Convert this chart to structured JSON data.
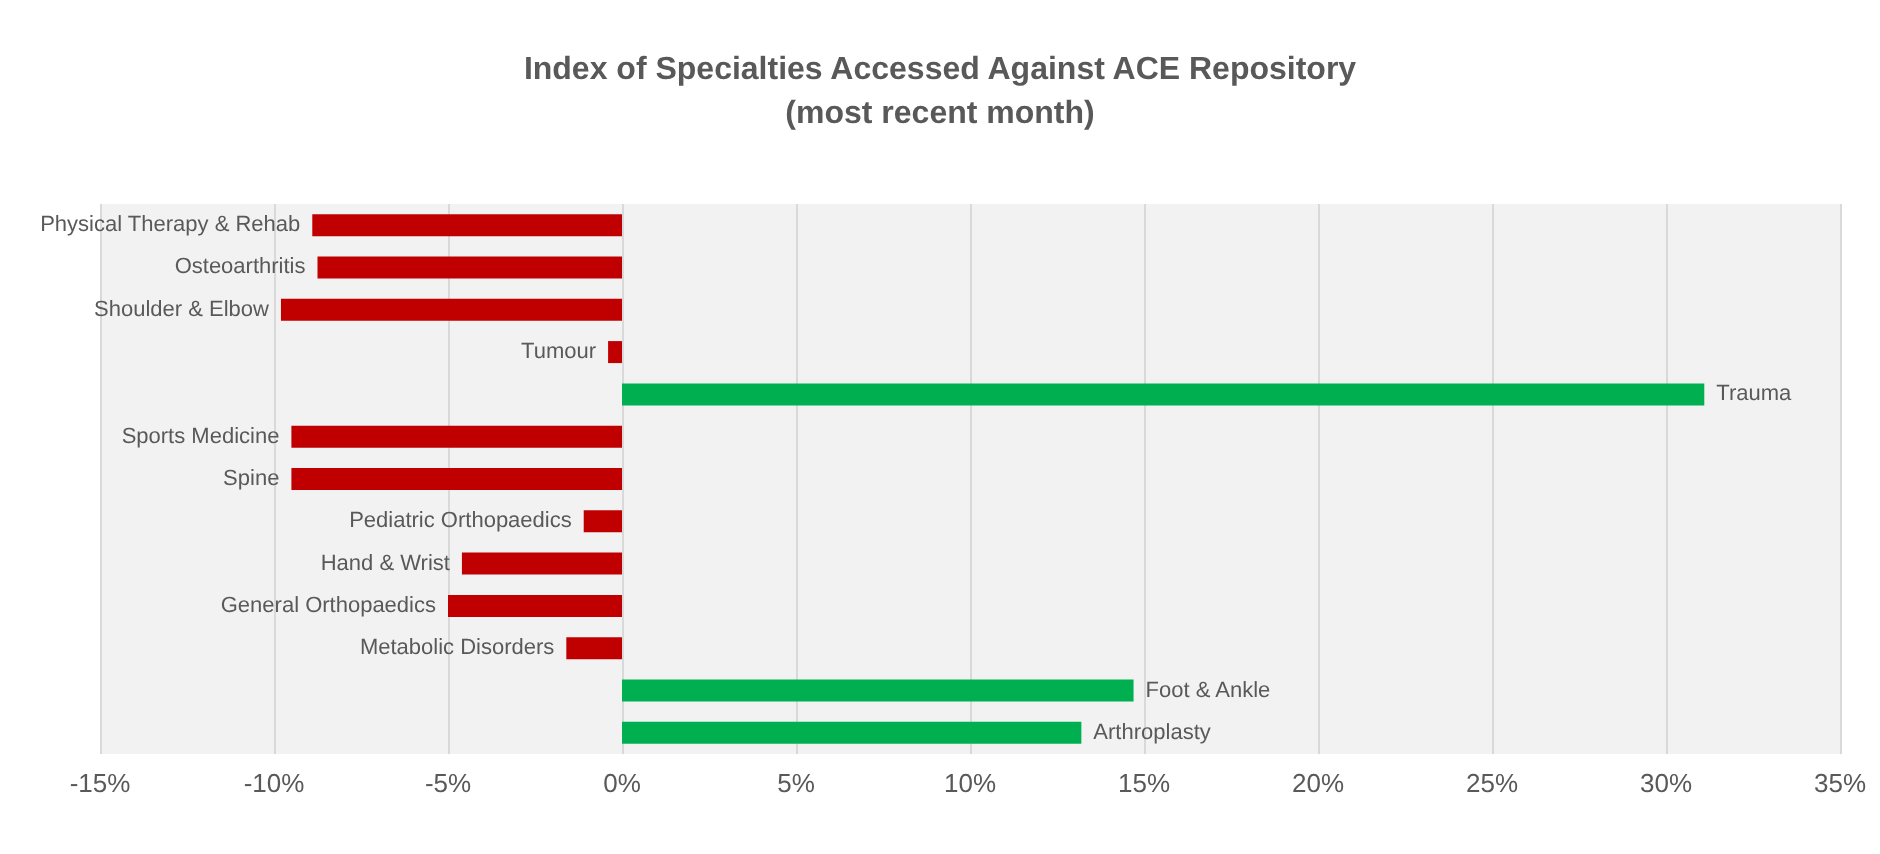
{
  "chart_data": {
    "type": "bar",
    "orientation": "horizontal",
    "title": "Index of Specialties Accessed Against ACE Repository",
    "subtitle": "(most recent month)",
    "categories": [
      "Physical Therapy & Rehab",
      "Osteoarthritis",
      "Shoulder & Elbow",
      "Tumour",
      "Trauma",
      "Sports Medicine",
      "Spine",
      "Pediatric Orthopaedics",
      "Hand & Wrist",
      "General Orthopaedics",
      "Metabolic Disorders",
      "Foot & Ankle",
      "Arthroplasty"
    ],
    "values": [
      -8.9,
      -8.75,
      -9.8,
      -0.4,
      31.1,
      -9.5,
      -9.5,
      -1.1,
      -4.6,
      -5.0,
      -1.6,
      14.7,
      13.2
    ],
    "colors": [
      "#c00000",
      "#c00000",
      "#c00000",
      "#c00000",
      "#00b050",
      "#c00000",
      "#c00000",
      "#c00000",
      "#c00000",
      "#c00000",
      "#c00000",
      "#00b050",
      "#00b050"
    ],
    "xlim": [
      -15,
      35
    ],
    "xticks": [
      {
        "value": -15,
        "label": "-15%"
      },
      {
        "value": -10,
        "label": "-10%"
      },
      {
        "value": -5,
        "label": "-5%"
      },
      {
        "value": 0,
        "label": "0%"
      },
      {
        "value": 5,
        "label": "5%"
      },
      {
        "value": 10,
        "label": "10%"
      },
      {
        "value": 15,
        "label": "15%"
      },
      {
        "value": 20,
        "label": "20%"
      },
      {
        "value": 25,
        "label": "25%"
      },
      {
        "value": 30,
        "label": "30%"
      },
      {
        "value": 35,
        "label": "35%"
      }
    ],
    "grid": "x",
    "tick_labels": "x"
  }
}
